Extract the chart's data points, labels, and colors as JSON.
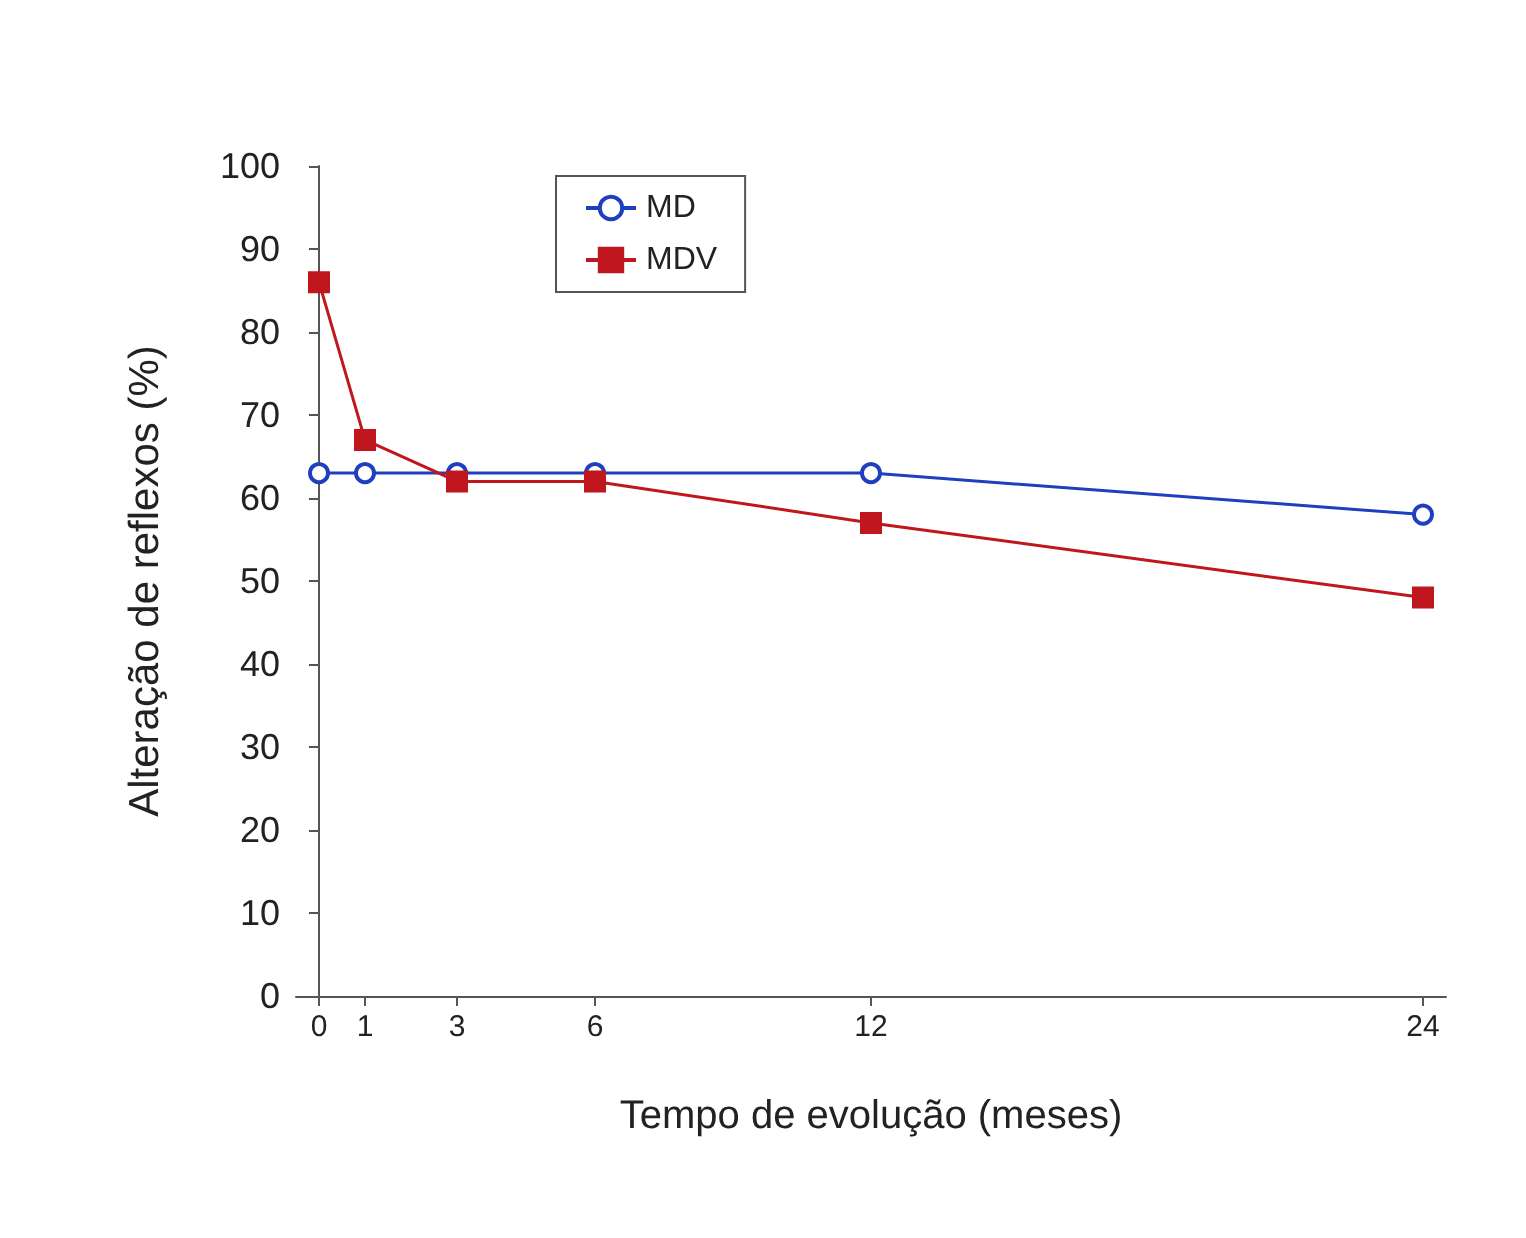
{
  "chart_data": {
    "type": "line",
    "xlabel": "Tempo de evolução (meses)",
    "ylabel": "Alteração de reflexos (%)",
    "xlim": [
      -0.5,
      24.5
    ],
    "xticks": [
      0,
      1,
      3,
      6,
      12,
      24
    ],
    "ylim": [
      0,
      100
    ],
    "yticks": [
      0,
      10,
      20,
      30,
      40,
      50,
      60,
      70,
      80,
      90,
      100
    ],
    "grid": false,
    "legend": "top",
    "series": [
      {
        "name": "MD",
        "color": "#1f3fbf",
        "marker": "circle",
        "x": [
          0,
          1,
          3,
          6,
          12,
          24
        ],
        "values": [
          63,
          63,
          63,
          63,
          63,
          58
        ]
      },
      {
        "name": "MDV",
        "color": "#c0161e",
        "marker": "square",
        "x": [
          0,
          1,
          3,
          6,
          12,
          24
        ],
        "values": [
          86,
          67,
          62,
          62,
          57,
          48
        ]
      }
    ]
  }
}
